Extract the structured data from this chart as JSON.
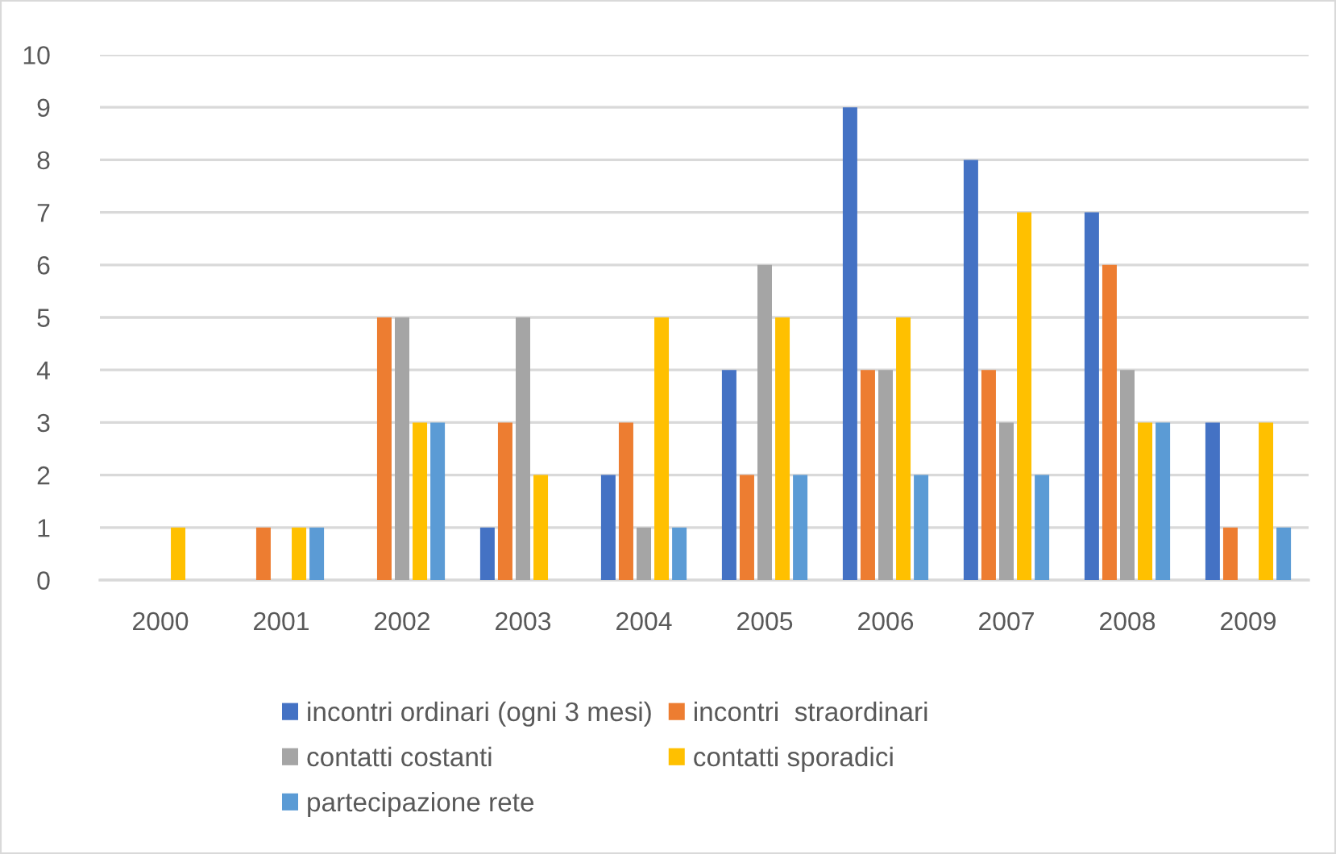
{
  "chart_data": {
    "type": "bar",
    "categories": [
      "2000",
      "2001",
      "2002",
      "2003",
      "2004",
      "2005",
      "2006",
      "2007",
      "2008",
      "2009"
    ],
    "series": [
      {
        "name": "incontri ordinari (ogni 3 mesi)",
        "color": "#4472c4",
        "values": [
          0,
          0,
          0,
          1,
          2,
          4,
          9,
          8,
          7,
          3
        ]
      },
      {
        "name": "incontri  straordinari",
        "color": "#ed7d31",
        "values": [
          0,
          1,
          5,
          3,
          3,
          2,
          4,
          4,
          6,
          1
        ]
      },
      {
        "name": "contatti costanti",
        "color": "#a5a5a5",
        "values": [
          0,
          0,
          5,
          5,
          1,
          6,
          4,
          3,
          4,
          0
        ]
      },
      {
        "name": "contatti sporadici",
        "color": "#ffc000",
        "values": [
          1,
          1,
          3,
          2,
          5,
          5,
          5,
          7,
          3,
          3
        ]
      },
      {
        "name": "partecipazione rete",
        "color": "#5b9bd5",
        "values": [
          0,
          1,
          3,
          0,
          1,
          2,
          2,
          2,
          3,
          1
        ]
      }
    ],
    "ylim": [
      0,
      10
    ],
    "yticks": [
      0,
      1,
      2,
      3,
      4,
      5,
      6,
      7,
      8,
      9,
      10
    ],
    "grid": "y",
    "legend": "bottom"
  }
}
